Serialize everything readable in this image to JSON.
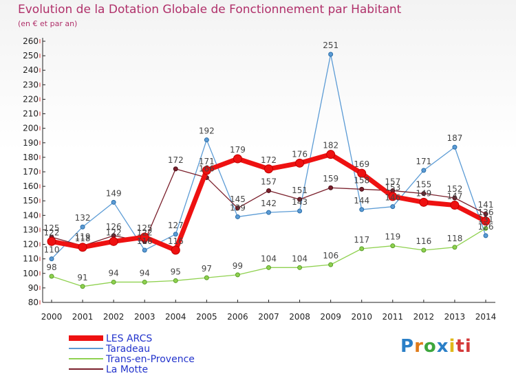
{
  "chart_data": {
    "type": "line",
    "title": "Evolution de la Dotation Globale de Fonctionnement par Habitant",
    "subtitle": "(en € et par an)",
    "categories": [
      "2000",
      "2001",
      "2002",
      "2003",
      "2004",
      "2005",
      "2006",
      "2007",
      "2008",
      "2009",
      "2010",
      "2011",
      "2012",
      "2013",
      "2014"
    ],
    "ylim": [
      80,
      260
    ],
    "yticks": [
      80,
      90,
      100,
      110,
      120,
      130,
      140,
      150,
      160,
      170,
      180,
      190,
      200,
      210,
      220,
      230,
      240,
      250,
      260
    ],
    "grid": false,
    "legend_position": "bottom-left",
    "series": [
      {
        "name": "Taradeau",
        "color": "#5b9bd5",
        "values": [
          110,
          132,
          149,
          116,
          127,
          192,
          139,
          142,
          143,
          251,
          144,
          146,
          171,
          187,
          126
        ]
      },
      {
        "name": "Trans-en-Provence",
        "color": "#8fd14f",
        "values": [
          98,
          91,
          94,
          94,
          95,
          97,
          99,
          104,
          104,
          106,
          117,
          119,
          116,
          118,
          131
        ]
      },
      {
        "name": "La Motte",
        "color": "#7a1f2b",
        "values": [
          125,
          119,
          126,
          122,
          172,
          166,
          145,
          157,
          151,
          159,
          158,
          157,
          155,
          152,
          141
        ]
      },
      {
        "name": "LES ARCS",
        "color": "#ee1111",
        "values": [
          122,
          118,
          122,
          125,
          116,
          171,
          179,
          172,
          176,
          182,
          169,
          153,
          149,
          147,
          136
        ]
      }
    ],
    "legend_order": [
      "LES ARCS",
      "Taradeau",
      "Trans-en-Provence",
      "La Motte"
    ]
  },
  "brand": {
    "letters": [
      "P",
      "r",
      "o",
      "x",
      "i",
      "ti"
    ]
  }
}
